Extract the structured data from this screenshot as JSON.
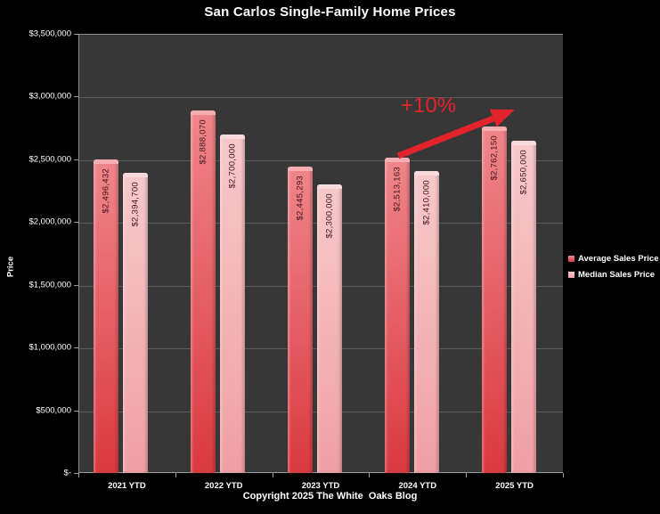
{
  "title": "San Carlos Single-Family Home Prices",
  "copyright": "Copyright 2025 The White  Oaks Blog",
  "annotation": {
    "text": "+10%"
  },
  "colors": {
    "background": "#000000",
    "plot_background": "#373737",
    "gridline": "#5a5a5a",
    "axis_line": "#9a9a9a",
    "axis_text": "#ffffff",
    "annotation_red": "#e3232b",
    "bar_value_label": "#3f151a"
  },
  "chart_data": {
    "type": "bar",
    "title": "San Carlos Single-Family Home Prices",
    "xlabel": "",
    "ylabel": "Price",
    "ylim": [
      0,
      3500000
    ],
    "grid": true,
    "legend_position": "right",
    "categories": [
      "2021 YTD",
      "2022 YTD",
      "2023 YTD",
      "2024 YTD",
      "2025 YTD"
    ],
    "series": [
      {
        "name": "Average Sales Price",
        "values": [
          2496432,
          2888070,
          2445293,
          2513163,
          2762150
        ],
        "labels": [
          "$2,496,432",
          "$2,888,070",
          "$2,445,293",
          "$2,513,163",
          "$2,762,150"
        ],
        "color_top": "#ef868b",
        "color_bottom": "#da3940",
        "cap_color": "#f5aeb2"
      },
      {
        "name": "Median Sales Price",
        "values": [
          2394700,
          2700000,
          2300000,
          2410000,
          2650000
        ],
        "labels": [
          "$2,394,700",
          "$2,700,000",
          "$2,300,000",
          "$2,410,000",
          "$2,650,000"
        ],
        "color_top": "#f7c9cb",
        "color_bottom": "#efa0a4",
        "cap_color": "#f9dadc"
      }
    ],
    "yticks": [
      {
        "label": "$-",
        "value": 0
      },
      {
        "label": "$500,000",
        "value": 500000
      },
      {
        "label": "$1,000,000",
        "value": 1000000
      },
      {
        "label": "$1,500,000",
        "value": 1500000
      },
      {
        "label": "$2,000,000",
        "value": 2000000
      },
      {
        "label": "$2,500,000",
        "value": 2500000
      },
      {
        "label": "$3,000,000",
        "value": 3000000
      },
      {
        "label": "$3,500,000",
        "value": 3500000
      }
    ],
    "annotations": [
      {
        "text": "+10%",
        "note": "red arrow from 2024 average bar to 2025 average bar"
      }
    ]
  }
}
